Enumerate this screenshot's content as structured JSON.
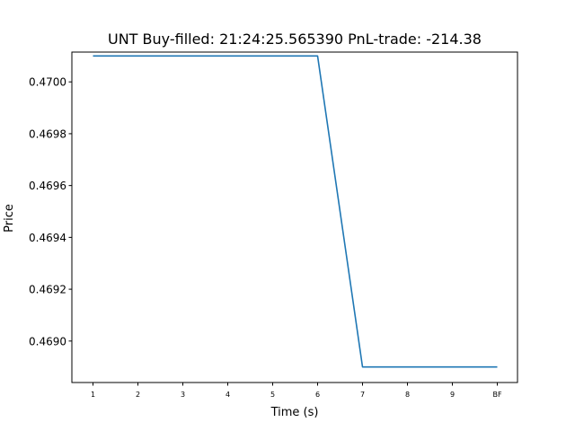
{
  "chart_data": {
    "type": "line",
    "title": "UNT  Buy-filled:  21:24:25.565390  PnL-trade:  -214.38",
    "xlabel": "Time (s)",
    "ylabel": "Price",
    "categories": [
      "1",
      "2",
      "3",
      "4",
      "5",
      "6",
      "7",
      "8",
      "9",
      "BF"
    ],
    "series": [
      {
        "values": [
          0.4701,
          0.4701,
          0.4701,
          0.4701,
          0.4701,
          0.4701,
          0.4689,
          0.4689,
          0.4689,
          0.4689
        ],
        "color": "#1f77b4"
      }
    ],
    "ylim": [
      0.46884,
      0.470115
    ],
    "yticks": [
      "0.4690",
      "0.4692",
      "0.4694",
      "0.4696",
      "0.4698",
      "0.4700"
    ],
    "grid": false,
    "legend": "none"
  }
}
